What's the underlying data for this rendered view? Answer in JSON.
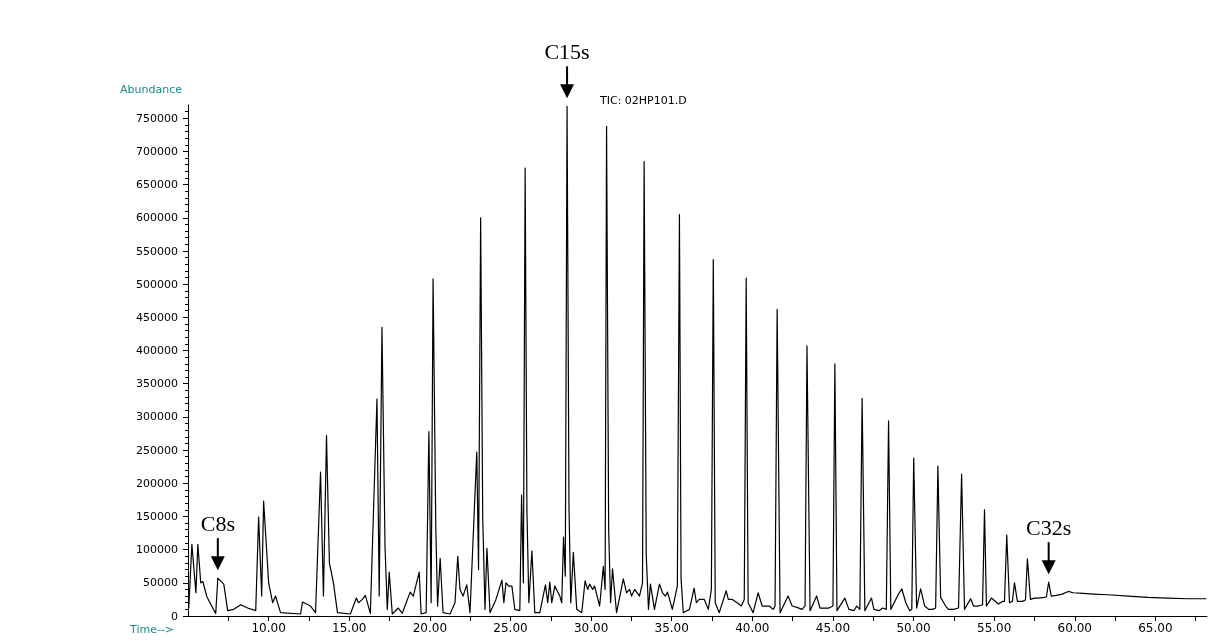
{
  "chart_data": {
    "type": "line",
    "title": "TIC: 02HP101.D",
    "xlabel": "Time-->",
    "ylabel": "Abundance",
    "annotations": [
      {
        "text": "C8s",
        "x": 6.85,
        "y": 57000
      },
      {
        "text": "C15s",
        "x": 28.51,
        "y": 768000
      },
      {
        "text": "C32s",
        "x": 58.38,
        "y": 51000
      }
    ],
    "xlim": [
      5,
      68.2
    ],
    "ylim": [
      0,
      770000
    ],
    "xticks": [
      {
        "value": 7.5,
        "label": null
      },
      {
        "value": 10,
        "label": "10.00"
      },
      {
        "value": 12.5,
        "label": null
      },
      {
        "value": 15,
        "label": "15.00"
      },
      {
        "value": 17.5,
        "label": null
      },
      {
        "value": 20,
        "label": "20.00"
      },
      {
        "value": 22.5,
        "label": null
      },
      {
        "value": 25,
        "label": "25.00"
      },
      {
        "value": 27.5,
        "label": null
      },
      {
        "value": 30,
        "label": "30.00"
      },
      {
        "value": 32.5,
        "label": null
      },
      {
        "value": 35,
        "label": "35.00"
      },
      {
        "value": 37.5,
        "label": null
      },
      {
        "value": 40,
        "label": "40.00"
      },
      {
        "value": 42.5,
        "label": null
      },
      {
        "value": 45,
        "label": "45.00"
      },
      {
        "value": 47.5,
        "label": null
      },
      {
        "value": 50,
        "label": "50.00"
      },
      {
        "value": 52.5,
        "label": null
      },
      {
        "value": 55,
        "label": "55.00"
      },
      {
        "value": 57.5,
        "label": null
      },
      {
        "value": 60,
        "label": "60.00"
      },
      {
        "value": 62.5,
        "label": null
      },
      {
        "value": 65,
        "label": "65.00"
      },
      {
        "value": 67.5,
        "label": null
      }
    ],
    "yticks": [
      0,
      50000,
      100000,
      150000,
      200000,
      250000,
      300000,
      350000,
      400000,
      450000,
      500000,
      550000,
      600000,
      650000,
      700000,
      750000
    ],
    "grid": false,
    "marker": "none",
    "line_style": "solid",
    "series": [
      {
        "color": "#000000",
        "x": [
          5.05,
          5.24,
          5.49,
          5.61,
          5.79,
          5.92,
          6.17,
          6.6,
          6.72,
          6.85,
          7.22,
          7.46,
          7.84,
          8.27,
          8.7,
          9.2,
          9.38,
          9.57,
          9.69,
          10.0,
          10.25,
          10.43,
          10.74,
          11.98,
          12.1,
          12.6,
          12.91,
          13.22,
          13.4,
          13.59,
          13.77,
          14.02,
          14.27,
          15.07,
          15.44,
          15.57,
          15.81,
          16.0,
          16.31,
          16.72,
          16.86,
          17.03,
          17.22,
          17.36,
          17.48,
          17.67,
          18.04,
          18.29,
          18.53,
          18.78,
          18.97,
          19.34,
          19.46,
          19.77,
          19.94,
          20.08,
          20.2,
          20.37,
          20.48,
          20.64,
          20.82,
          21.25,
          21.56,
          21.73,
          21.87,
          22.06,
          22.29,
          22.49,
          22.91,
          23.02,
          23.15,
          23.28,
          23.42,
          23.54,
          23.73,
          24.1,
          24.47,
          24.59,
          24.72,
          24.9,
          25.09,
          25.27,
          25.58,
          25.69,
          25.8,
          25.91,
          26.02,
          26.14,
          26.33,
          26.51,
          26.82,
          27.17,
          27.31,
          27.44,
          27.56,
          27.75,
          28.06,
          28.18,
          28.29,
          28.4,
          28.51,
          28.63,
          28.74,
          28.9,
          29.11,
          29.42,
          29.63,
          29.79,
          29.91,
          30.1,
          30.22,
          30.53,
          30.76,
          30.87,
          30.96,
          31.09,
          31.21,
          31.33,
          31.58,
          32.0,
          32.2,
          32.39,
          32.51,
          32.7,
          33.0,
          33.19,
          33.29,
          33.42,
          33.56,
          33.68,
          33.93,
          34.24,
          34.43,
          34.61,
          34.74,
          35.04,
          35.35,
          35.48,
          35.58,
          35.72,
          36.1,
          36.39,
          36.53,
          36.71,
          37.02,
          37.27,
          37.46,
          37.58,
          37.7,
          37.95,
          38.38,
          38.51,
          38.76,
          39.06,
          39.31,
          39.5,
          39.62,
          39.74,
          40.05,
          40.36,
          40.61,
          40.86,
          41.04,
          41.29,
          41.41,
          41.54,
          41.72,
          42.22,
          42.47,
          42.77,
          43.08,
          43.27,
          43.39,
          43.58,
          43.99,
          44.2,
          44.51,
          44.75,
          45.0,
          45.12,
          45.25,
          45.74,
          45.99,
          46.3,
          46.48,
          46.67,
          46.81,
          46.98,
          47.39,
          47.54,
          47.85,
          48.09,
          48.31,
          48.45,
          48.59,
          49.02,
          49.27,
          49.52,
          49.76,
          49.89,
          50.01,
          50.19,
          50.44,
          50.69,
          50.94,
          51.18,
          51.37,
          51.51,
          51.68,
          51.99,
          52.17,
          52.48,
          52.79,
          52.98,
          53.16,
          53.54,
          53.72,
          54.03,
          54.28,
          54.4,
          54.52,
          54.83,
          55.27,
          55.51,
          55.64,
          55.78,
          55.95,
          56.13,
          56.26,
          56.44,
          56.75,
          56.94,
          57.06,
          57.25,
          57.49,
          57.74,
          58.11,
          58.24,
          58.38,
          58.54,
          58.85,
          59.22,
          59.6,
          59.9,
          60.52,
          61.14,
          62.07,
          63.31,
          64.54,
          65.78,
          67.02,
          68.13
        ],
        "values": [
          13000,
          108000,
          35000,
          108000,
          50000,
          52000,
          29000,
          9000,
          4000,
          57000,
          48000,
          8000,
          10000,
          17000,
          12000,
          8000,
          149000,
          30000,
          173000,
          50000,
          20000,
          30000,
          5000,
          3000,
          21000,
          15000,
          5000,
          217000,
          30000,
          272000,
          80000,
          50000,
          5000,
          3000,
          27000,
          20000,
          25000,
          31000,
          4000,
          327000,
          30000,
          435000,
          104000,
          10000,
          66000,
          3000,
          12000,
          4000,
          20000,
          36000,
          30000,
          66000,
          3000,
          5000,
          278000,
          20000,
          508000,
          132000,
          15000,
          87000,
          5000,
          3000,
          20000,
          90000,
          40000,
          30000,
          47000,
          5000,
          247000,
          70000,
          600000,
          148000,
          10000,
          102000,
          5000,
          25000,
          54000,
          20000,
          50000,
          45000,
          45000,
          10000,
          8000,
          182000,
          50000,
          675000,
          160000,
          20000,
          98000,
          5000,
          5000,
          47000,
          20000,
          51000,
          20000,
          45000,
          30000,
          20000,
          119000,
          60000,
          768000,
          163000,
          20000,
          96000,
          10000,
          5000,
          53000,
          40000,
          48000,
          40000,
          45000,
          15000,
          75000,
          40000,
          738000,
          130000,
          20000,
          71000,
          5000,
          56000,
          35000,
          40000,
          30000,
          40000,
          30000,
          50000,
          685000,
          93000,
          10000,
          48000,
          10000,
          48000,
          35000,
          30000,
          36000,
          10000,
          45000,
          605000,
          56000,
          5000,
          10000,
          42000,
          20000,
          25000,
          25000,
          10000,
          40000,
          537000,
          20000,
          5000,
          38000,
          25000,
          25000,
          20000,
          15000,
          25000,
          509000,
          20000,
          5000,
          35000,
          15000,
          15000,
          15000,
          10000,
          15000,
          462000,
          5000,
          30000,
          15000,
          13000,
          10000,
          15000,
          407000,
          8000,
          30000,
          12000,
          12000,
          12000,
          15000,
          380000,
          8000,
          27000,
          10000,
          8000,
          15000,
          10000,
          328000,
          8000,
          27000,
          10000,
          8000,
          12000,
          10000,
          294000,
          10000,
          31000,
          41000,
          20000,
          8000,
          10000,
          238000,
          12000,
          41000,
          15000,
          10000,
          10000,
          12000,
          226000,
          28000,
          15000,
          10000,
          10000,
          12000,
          214000,
          10000,
          26000,
          15000,
          15000,
          17000,
          160000,
          15000,
          27000,
          18000,
          22000,
          22000,
          122000,
          20000,
          22000,
          50000,
          22000,
          22000,
          24000,
          86000,
          25000,
          27000,
          27000,
          28000,
          29000,
          51000,
          30000,
          31000,
          33000,
          37000,
          35000,
          34000,
          33000,
          32000,
          30000,
          28000,
          27000,
          26000,
          26000
        ]
      }
    ]
  }
}
